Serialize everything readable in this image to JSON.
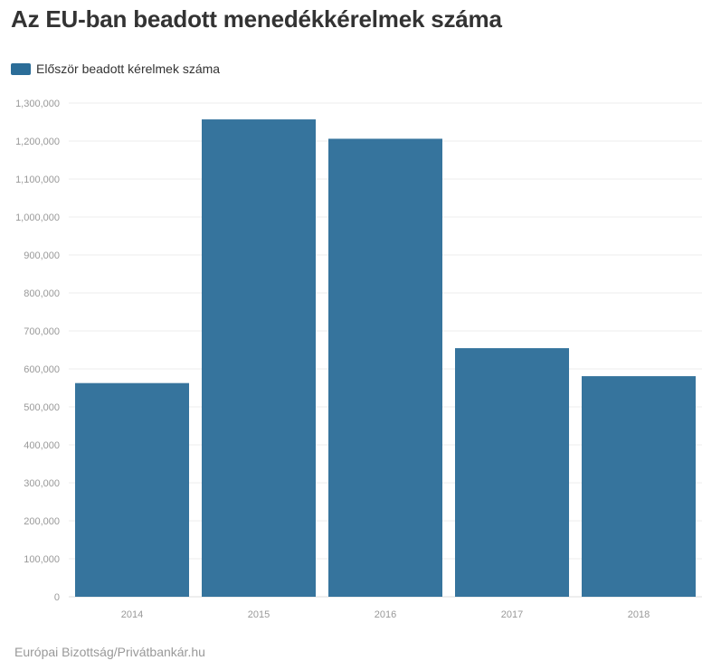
{
  "title": "Az EU-ban beadott menedékkérelmek száma",
  "legend": {
    "label": "Először beadott kérelmek száma"
  },
  "source": "Európai Bizottság/Privátbankár.hu",
  "colors": {
    "bar": "#2b6d98",
    "grid": "#eeeeee",
    "axis_text": "#999999"
  },
  "chart_data": {
    "type": "bar",
    "categories": [
      "2014",
      "2015",
      "2016",
      "2017",
      "2018"
    ],
    "series": [
      {
        "name": "Először beadott kérelmek száma",
        "values": [
          562680,
          1257030,
          1206045,
          654610,
          580845
        ]
      }
    ],
    "ylim": [
      0,
      1300000
    ],
    "yticks": [
      0,
      100000,
      200000,
      300000,
      400000,
      500000,
      600000,
      700000,
      800000,
      900000,
      1000000,
      1100000,
      1200000,
      1300000
    ],
    "ytick_labels": [
      "0",
      "100,000",
      "200,000",
      "300,000",
      "400,000",
      "500,000",
      "600,000",
      "700,000",
      "800,000",
      "900,000",
      "1,000,000",
      "1,100,000",
      "1,200,000",
      "1,300,000"
    ],
    "grid": true,
    "legend_position": "top-left"
  }
}
